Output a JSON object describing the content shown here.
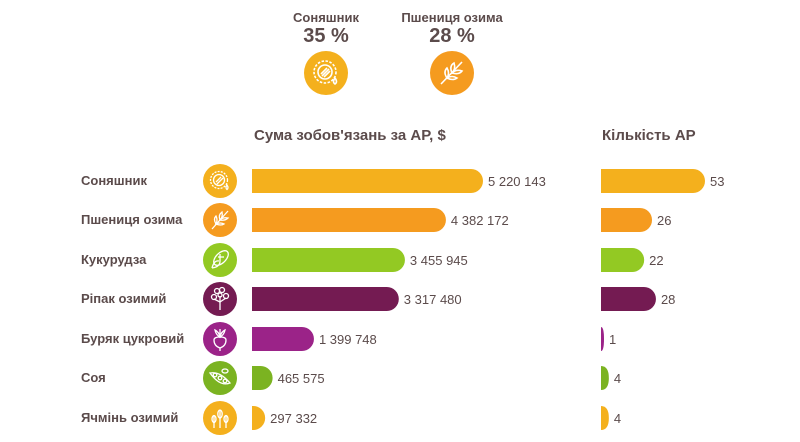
{
  "top_items": [
    {
      "label": "Соняшник",
      "percent": "35 %",
      "icon": "sunflower-icon",
      "color": "#F4B01D"
    },
    {
      "label": "Пшениця озима",
      "percent": "28 %",
      "icon": "wheat-icon",
      "color": "#F59B1F"
    }
  ],
  "chart_data": [
    {
      "type": "bar",
      "orientation": "horizontal",
      "title": "Сума зобов'язань за АР, $",
      "categories": [
        "Соняшник",
        "Пшениця озима",
        "Кукурудза",
        "Ріпак озимий",
        "Буряк цукровий",
        "Соя",
        "Ячмінь озимий"
      ],
      "values": [
        5220143,
        4382172,
        3455945,
        3317480,
        1399748,
        465575,
        297332
      ],
      "value_labels": [
        "5 220 143",
        "4 382 172",
        "3 455 945",
        "3 317 480",
        "1 399 748",
        "465 575",
        "297 332"
      ],
      "colors": [
        "#F4B01D",
        "#F59B1F",
        "#93C923",
        "#741B52",
        "#9B2388",
        "#7BB321",
        "#F4B01D"
      ],
      "xlim": [
        0,
        5220143
      ],
      "grid": false
    },
    {
      "type": "bar",
      "orientation": "horizontal",
      "title": "Кількість АР",
      "categories": [
        "Соняшник",
        "Пшениця озима",
        "Кукурудза",
        "Ріпак озимий",
        "Буряк цукровий",
        "Соя",
        "Ячмінь озимий"
      ],
      "values": [
        53,
        26,
        22,
        28,
        1,
        4,
        4
      ],
      "value_labels": [
        "53",
        "26",
        "22",
        "28",
        "1",
        "4",
        "4"
      ],
      "colors": [
        "#F4B01D",
        "#F59B1F",
        "#93C923",
        "#741B52",
        "#9B2388",
        "#7BB321",
        "#F4B01D"
      ],
      "xlim": [
        0,
        53
      ],
      "grid": false
    }
  ],
  "rows": [
    {
      "label": "Соняшник",
      "icon": "sunflower-icon",
      "color": "#F4B01D"
    },
    {
      "label": "Пшениця озима",
      "icon": "wheat-icon",
      "color": "#F59B1F"
    },
    {
      "label": "Кукурудза",
      "icon": "corn-icon",
      "color": "#93C923"
    },
    {
      "label": "Ріпак озимий",
      "icon": "rapeseed-icon",
      "color": "#741B52"
    },
    {
      "label": "Буряк цукровий",
      "icon": "beet-icon",
      "color": "#9B2388"
    },
    {
      "label": "Соя",
      "icon": "soybean-icon",
      "color": "#7BB321"
    },
    {
      "label": "Ячмінь озимий",
      "icon": "barley-icon",
      "color": "#F4B01D"
    }
  ]
}
